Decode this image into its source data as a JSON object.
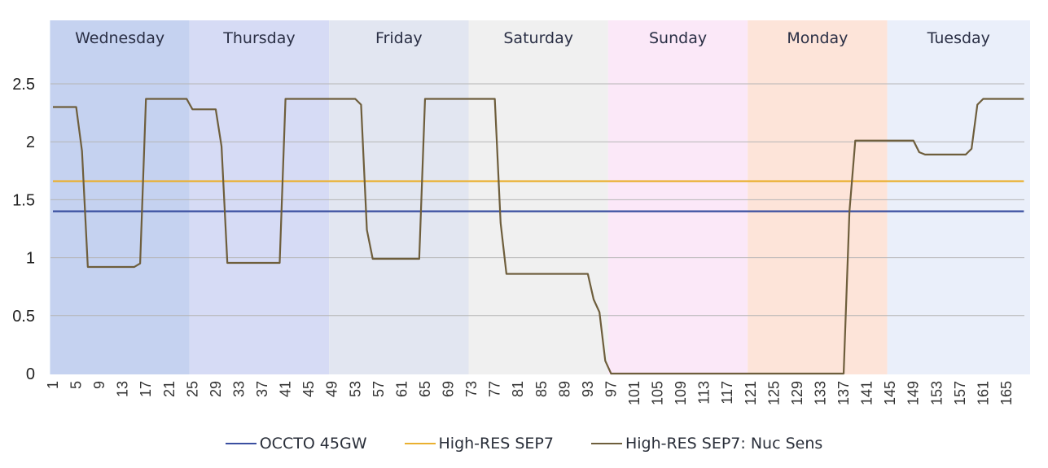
{
  "chart_data": {
    "type": "line",
    "title": "",
    "xlabel": "",
    "ylabel": "",
    "ylim": [
      0,
      2.8
    ],
    "yticks": [
      0,
      0.5,
      1,
      1.5,
      2,
      2.5
    ],
    "ytick_labels": [
      "0",
      "0.5",
      "1",
      "1.5",
      "2",
      "2.5"
    ],
    "grid": "horizontal",
    "legend_position": "bottom",
    "x_start": 1,
    "x_end": 168,
    "xtick_labels": [
      "1",
      "5",
      "9",
      "13",
      "17",
      "21",
      "25",
      "29",
      "33",
      "37",
      "41",
      "45",
      "49",
      "53",
      "57",
      "61",
      "65",
      "69",
      "73",
      "77",
      "81",
      "85",
      "89",
      "93",
      "97",
      "101",
      "105",
      "109",
      "113",
      "117",
      "121",
      "125",
      "129",
      "133",
      "137",
      "141",
      "145",
      "149",
      "153",
      "157",
      "161",
      "165"
    ],
    "day_bands": [
      {
        "label": "Wednesday",
        "start": 0.5,
        "end": 24.5,
        "color": "#c5d2f0"
      },
      {
        "label": "Thursday",
        "start": 24.5,
        "end": 48.5,
        "color": "#d6dbf5"
      },
      {
        "label": "Friday",
        "start": 48.5,
        "end": 72.5,
        "color": "#e2e6f1"
      },
      {
        "label": "Saturday",
        "start": 72.5,
        "end": 96.5,
        "color": "#f0f0f0"
      },
      {
        "label": "Sunday",
        "start": 96.5,
        "end": 120.5,
        "color": "#fbe8f8"
      },
      {
        "label": "Monday",
        "start": 120.5,
        "end": 144.5,
        "color": "#fde4d9"
      },
      {
        "label": "Tuesday",
        "start": 144.5,
        "end": 169.5,
        "color": "#eaeffa"
      }
    ],
    "series": [
      {
        "name": "OCCTO 45GW",
        "color": "#3a4fa0",
        "constant": 1.4
      },
      {
        "name": "High-RES SEP7",
        "color": "#eab030",
        "constant": 1.66
      },
      {
        "name": "High-RES SEP7: Nuc Sens",
        "color": "#6e5e3c",
        "segments": [
          [
            1,
            5,
            2.3
          ],
          [
            6,
            6,
            1.92
          ],
          [
            7,
            15,
            0.92
          ],
          [
            16,
            16,
            0.95
          ],
          [
            17,
            24,
            2.37
          ],
          [
            25,
            29,
            2.28
          ],
          [
            30,
            30,
            1.96
          ],
          [
            31,
            40,
            0.955
          ],
          [
            41,
            53,
            2.37
          ],
          [
            54,
            54,
            2.32
          ],
          [
            55,
            55,
            1.24
          ],
          [
            56,
            64,
            0.99
          ],
          [
            65,
            77,
            2.37
          ],
          [
            78,
            78,
            1.3
          ],
          [
            79,
            93,
            0.86
          ],
          [
            94,
            94,
            0.64
          ],
          [
            95,
            95,
            0.53
          ],
          [
            96,
            96,
            0.11
          ],
          [
            97,
            137,
            0
          ],
          [
            138,
            138,
            1.4
          ],
          [
            139,
            149,
            2.01
          ],
          [
            150,
            150,
            1.91
          ],
          [
            151,
            158,
            1.89
          ],
          [
            159,
            159,
            1.94
          ],
          [
            160,
            160,
            2.32
          ],
          [
            161,
            168,
            2.37
          ]
        ]
      }
    ]
  },
  "legend": {
    "items": [
      {
        "label": "OCCTO 45GW",
        "color": "#3a4fa0"
      },
      {
        "label": "High-RES SEP7",
        "color": "#eab030"
      },
      {
        "label": "High-RES SEP7: Nuc Sens",
        "color": "#6e5e3c"
      }
    ]
  }
}
